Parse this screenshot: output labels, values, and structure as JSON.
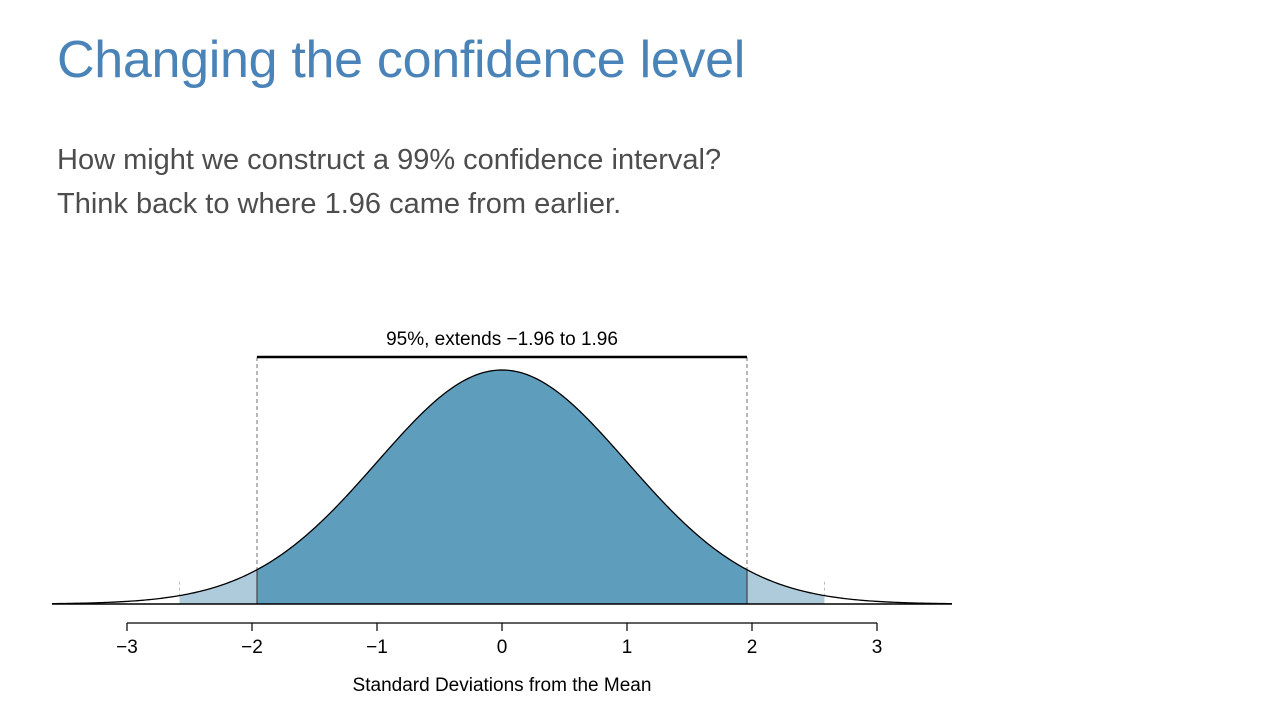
{
  "slide": {
    "title": "Changing the confidence level",
    "lines": [
      "How might we construct a 99% confidence interval?",
      "Think back to where 1.96 came from earlier."
    ]
  },
  "chart_data": {
    "type": "area",
    "distribution": "standard normal",
    "xlabel": "Standard Deviations from the Mean",
    "ylabel": "",
    "title": "",
    "xlim": [
      -3.6,
      3.6
    ],
    "ticks": [
      -3,
      -2,
      -1,
      0,
      1,
      2,
      3
    ],
    "tick_labels": [
      "−3",
      "−2",
      "−1",
      "0",
      "1",
      "2",
      "3"
    ],
    "regions": [
      {
        "label": "outer",
        "from": -2.58,
        "to": 2.58,
        "color": "#aecbdc"
      },
      {
        "label": "inner",
        "from": -1.96,
        "to": 1.96,
        "color": "#5f9dbc"
      }
    ],
    "bracket": {
      "from": -1.96,
      "to": 1.96,
      "label": "95%, extends −1.96 to 1.96"
    },
    "colors": {
      "curve": "#000000",
      "guide": "#888888"
    }
  }
}
